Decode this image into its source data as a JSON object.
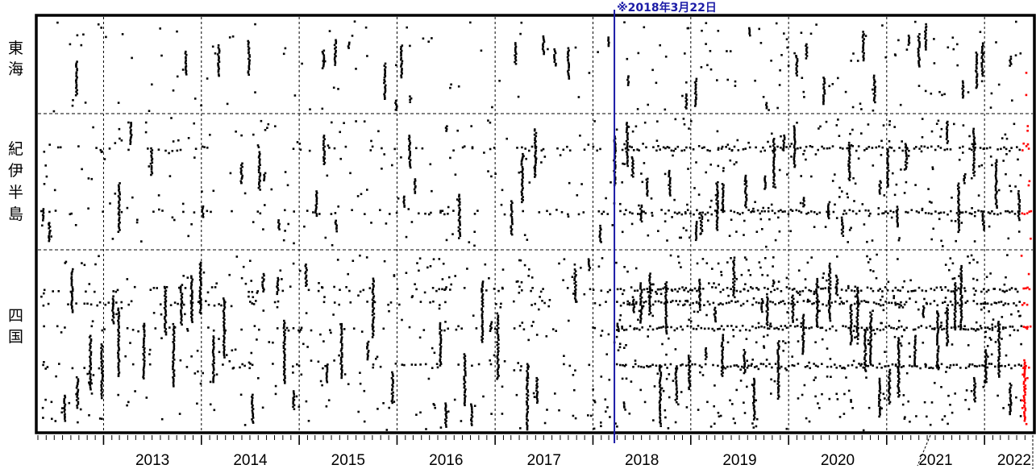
{
  "chart_data": {
    "type": "scatter",
    "x_range": [
      "2012-05-01",
      "2022-06-30"
    ],
    "year_tick_labels": [
      "2013",
      "2014",
      "2015",
      "2016",
      "2017",
      "2018",
      "2019",
      "2020",
      "2021",
      "2022"
    ],
    "region_labels": [
      "東海",
      "紀伊半島",
      "四国"
    ],
    "annotation": {
      "text": "※2018年3月22日",
      "date": "2018-03-22"
    },
    "grid": true,
    "colors": {
      "points": "#000000",
      "recent_points": "#ff0000",
      "annotation": "#1a1aa6"
    },
    "recent_period_start": "2022-05-15",
    "episodes_note": "",
    "series": [
      {
        "name": "",
        "values": []
      }
    ]
  }
}
